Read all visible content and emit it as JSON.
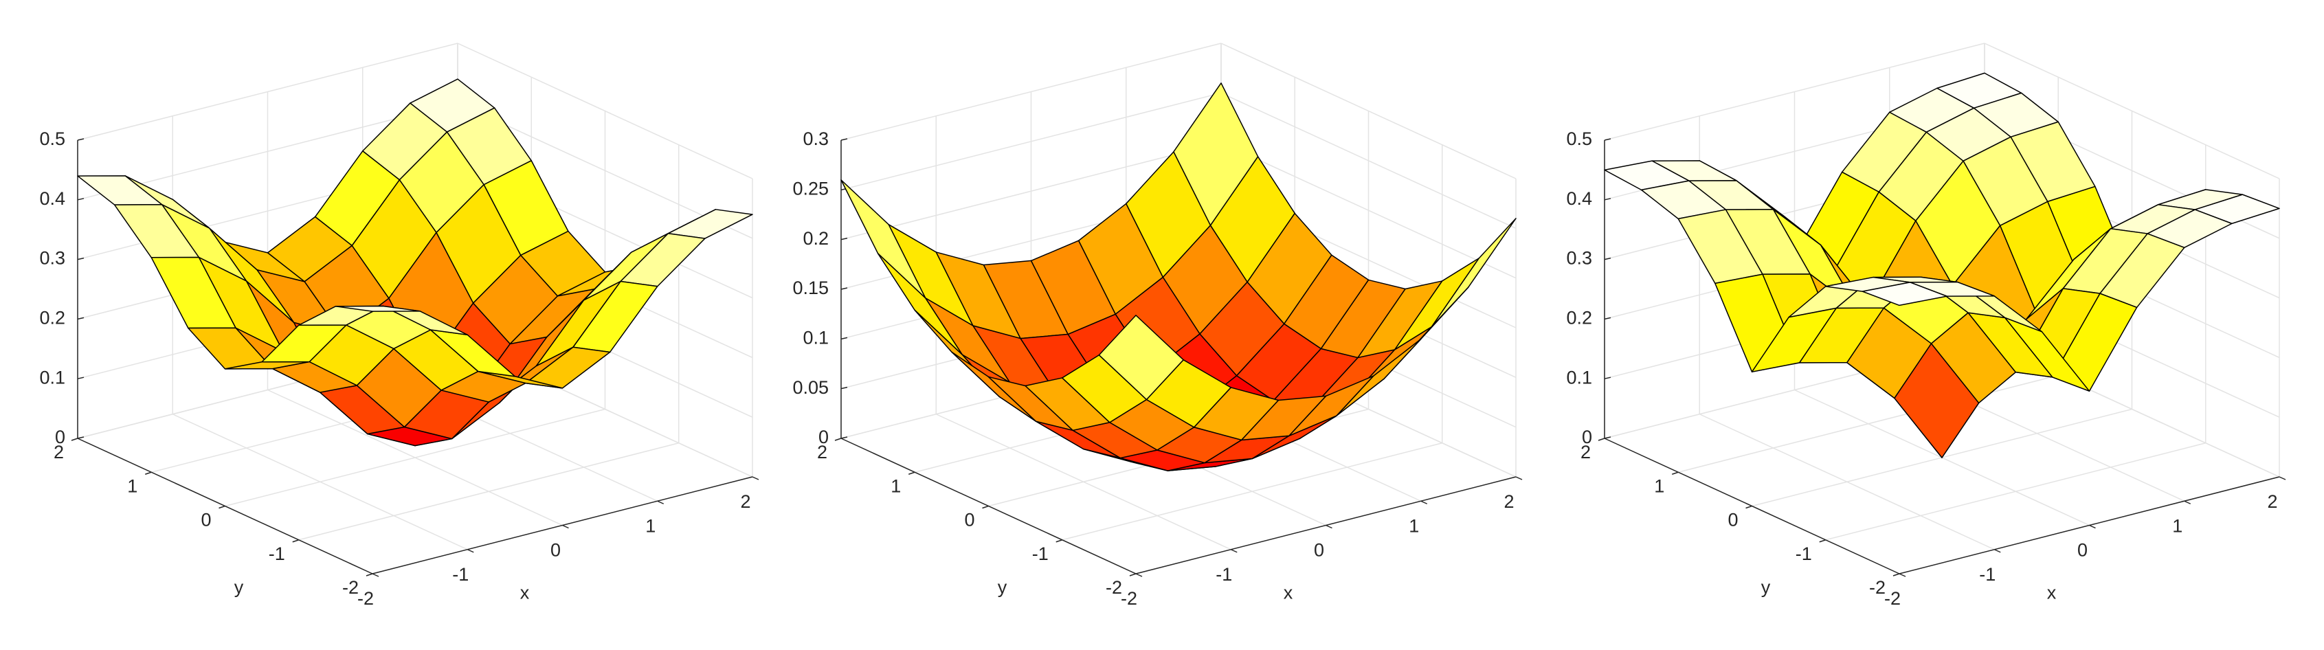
{
  "chart_data": [
    {
      "type": "surface",
      "colormap": "hot",
      "grid": true,
      "xlabel": "x",
      "ylabel": "y",
      "xlim": [
        -2,
        2
      ],
      "ylim": [
        -2,
        2
      ],
      "zlim": [
        0,
        0.5
      ],
      "xticks": [
        -2,
        -1,
        0,
        1,
        2
      ],
      "yticks": [
        -2,
        -1,
        0,
        1,
        2
      ],
      "zticks": [
        0,
        0.1,
        0.2,
        0.3,
        0.4,
        0.5
      ],
      "x": [
        -2,
        -1.5,
        -1,
        -0.5,
        0,
        0.5,
        1,
        1.5,
        2
      ],
      "y": [
        -2,
        -1.5,
        -1,
        -0.5,
        0,
        0.5,
        1,
        1.5,
        2
      ],
      "z": [
        [
          0.44,
          0.42,
          0.36,
          0.27,
          0.23,
          0.27,
          0.36,
          0.42,
          0.44
        ],
        [
          0.42,
          0.4,
          0.34,
          0.25,
          0.21,
          0.25,
          0.34,
          0.4,
          0.42
        ],
        [
          0.36,
          0.34,
          0.28,
          0.19,
          0.15,
          0.19,
          0.28,
          0.34,
          0.36
        ],
        [
          0.27,
          0.25,
          0.19,
          0.1,
          0.06,
          0.1,
          0.19,
          0.25,
          0.27
        ],
        [
          0.23,
          0.21,
          0.15,
          0.06,
          0.02,
          0.06,
          0.15,
          0.21,
          0.23
        ],
        [
          0.27,
          0.25,
          0.19,
          0.1,
          0.06,
          0.1,
          0.19,
          0.25,
          0.27
        ],
        [
          0.36,
          0.34,
          0.28,
          0.19,
          0.15,
          0.19,
          0.28,
          0.34,
          0.36
        ],
        [
          0.42,
          0.4,
          0.34,
          0.25,
          0.21,
          0.25,
          0.34,
          0.4,
          0.42
        ],
        [
          0.44,
          0.42,
          0.36,
          0.27,
          0.23,
          0.27,
          0.36,
          0.42,
          0.44
        ]
      ]
    },
    {
      "type": "surface",
      "colormap": "hot",
      "grid": true,
      "xlabel": "x",
      "ylabel": "y",
      "xlim": [
        -2,
        2
      ],
      "ylim": [
        -2,
        2
      ],
      "zlim": [
        0,
        0.3
      ],
      "xticks": [
        -2,
        -1,
        0,
        1,
        2
      ],
      "yticks": [
        -2,
        -1,
        0,
        1,
        2
      ],
      "zticks": [
        0,
        0.05,
        0.1,
        0.15,
        0.2,
        0.25,
        0.3
      ],
      "x": [
        -2,
        -1.5,
        -1,
        -0.5,
        0,
        0.5,
        1,
        1.5,
        2
      ],
      "y": [
        -2,
        -1.5,
        -1,
        -0.5,
        0,
        0.5,
        1,
        1.5,
        2
      ],
      "z": [
        [
          0.26,
          0.203,
          0.163,
          0.138,
          0.13,
          0.138,
          0.163,
          0.203,
          0.26
        ],
        [
          0.203,
          0.146,
          0.106,
          0.081,
          0.073,
          0.081,
          0.106,
          0.146,
          0.203
        ],
        [
          0.163,
          0.106,
          0.066,
          0.041,
          0.033,
          0.041,
          0.066,
          0.106,
          0.163
        ],
        [
          0.138,
          0.081,
          0.041,
          0.016,
          0.008,
          0.016,
          0.041,
          0.081,
          0.138
        ],
        [
          0.13,
          0.073,
          0.033,
          0.008,
          0,
          0.008,
          0.033,
          0.073,
          0.13
        ],
        [
          0.138,
          0.081,
          0.041,
          0.016,
          0.008,
          0.016,
          0.041,
          0.081,
          0.138
        ],
        [
          0.163,
          0.106,
          0.066,
          0.041,
          0.033,
          0.041,
          0.066,
          0.106,
          0.163
        ],
        [
          0.203,
          0.146,
          0.106,
          0.081,
          0.073,
          0.081,
          0.106,
          0.146,
          0.203
        ],
        [
          0.26,
          0.203,
          0.163,
          0.138,
          0.13,
          0.138,
          0.163,
          0.203,
          0.26
        ]
      ]
    },
    {
      "type": "surface",
      "colormap": "hot",
      "grid": true,
      "xlabel": "x",
      "ylabel": "y",
      "xlim": [
        -2,
        2
      ],
      "ylim": [
        -2,
        2
      ],
      "zlim": [
        0,
        0.5
      ],
      "xticks": [
        -2,
        -1,
        0,
        1,
        2
      ],
      "yticks": [
        -2,
        -1,
        0,
        1,
        2
      ],
      "zticks": [
        0,
        0.1,
        0.2,
        0.3,
        0.4,
        0.5
      ],
      "x": [
        -2,
        -1.5,
        -1,
        -0.5,
        0,
        0.5,
        1,
        1.5,
        2
      ],
      "y": [
        -2,
        -1.5,
        -1,
        -0.5,
        0,
        0.5,
        1,
        1.5,
        2
      ],
      "z": [
        [
          0.45,
          0.445,
          0.425,
          0.345,
          0.225,
          0.345,
          0.425,
          0.445,
          0.45
        ],
        [
          0.445,
          0.44,
          0.42,
          0.34,
          0.22,
          0.34,
          0.42,
          0.44,
          0.445
        ],
        [
          0.425,
          0.42,
          0.4,
          0.32,
          0.2,
          0.32,
          0.4,
          0.42,
          0.425
        ],
        [
          0.345,
          0.34,
          0.32,
          0.24,
          0.12,
          0.24,
          0.32,
          0.34,
          0.345
        ],
        [
          0.225,
          0.22,
          0.2,
          0.12,
          0,
          0.12,
          0.2,
          0.22,
          0.225
        ],
        [
          0.345,
          0.34,
          0.32,
          0.24,
          0.12,
          0.24,
          0.32,
          0.34,
          0.345
        ],
        [
          0.425,
          0.42,
          0.4,
          0.32,
          0.2,
          0.32,
          0.4,
          0.42,
          0.425
        ],
        [
          0.445,
          0.44,
          0.42,
          0.34,
          0.22,
          0.34,
          0.42,
          0.44,
          0.445
        ],
        [
          0.45,
          0.445,
          0.425,
          0.345,
          0.225,
          0.345,
          0.425,
          0.445,
          0.45
        ]
      ]
    }
  ]
}
